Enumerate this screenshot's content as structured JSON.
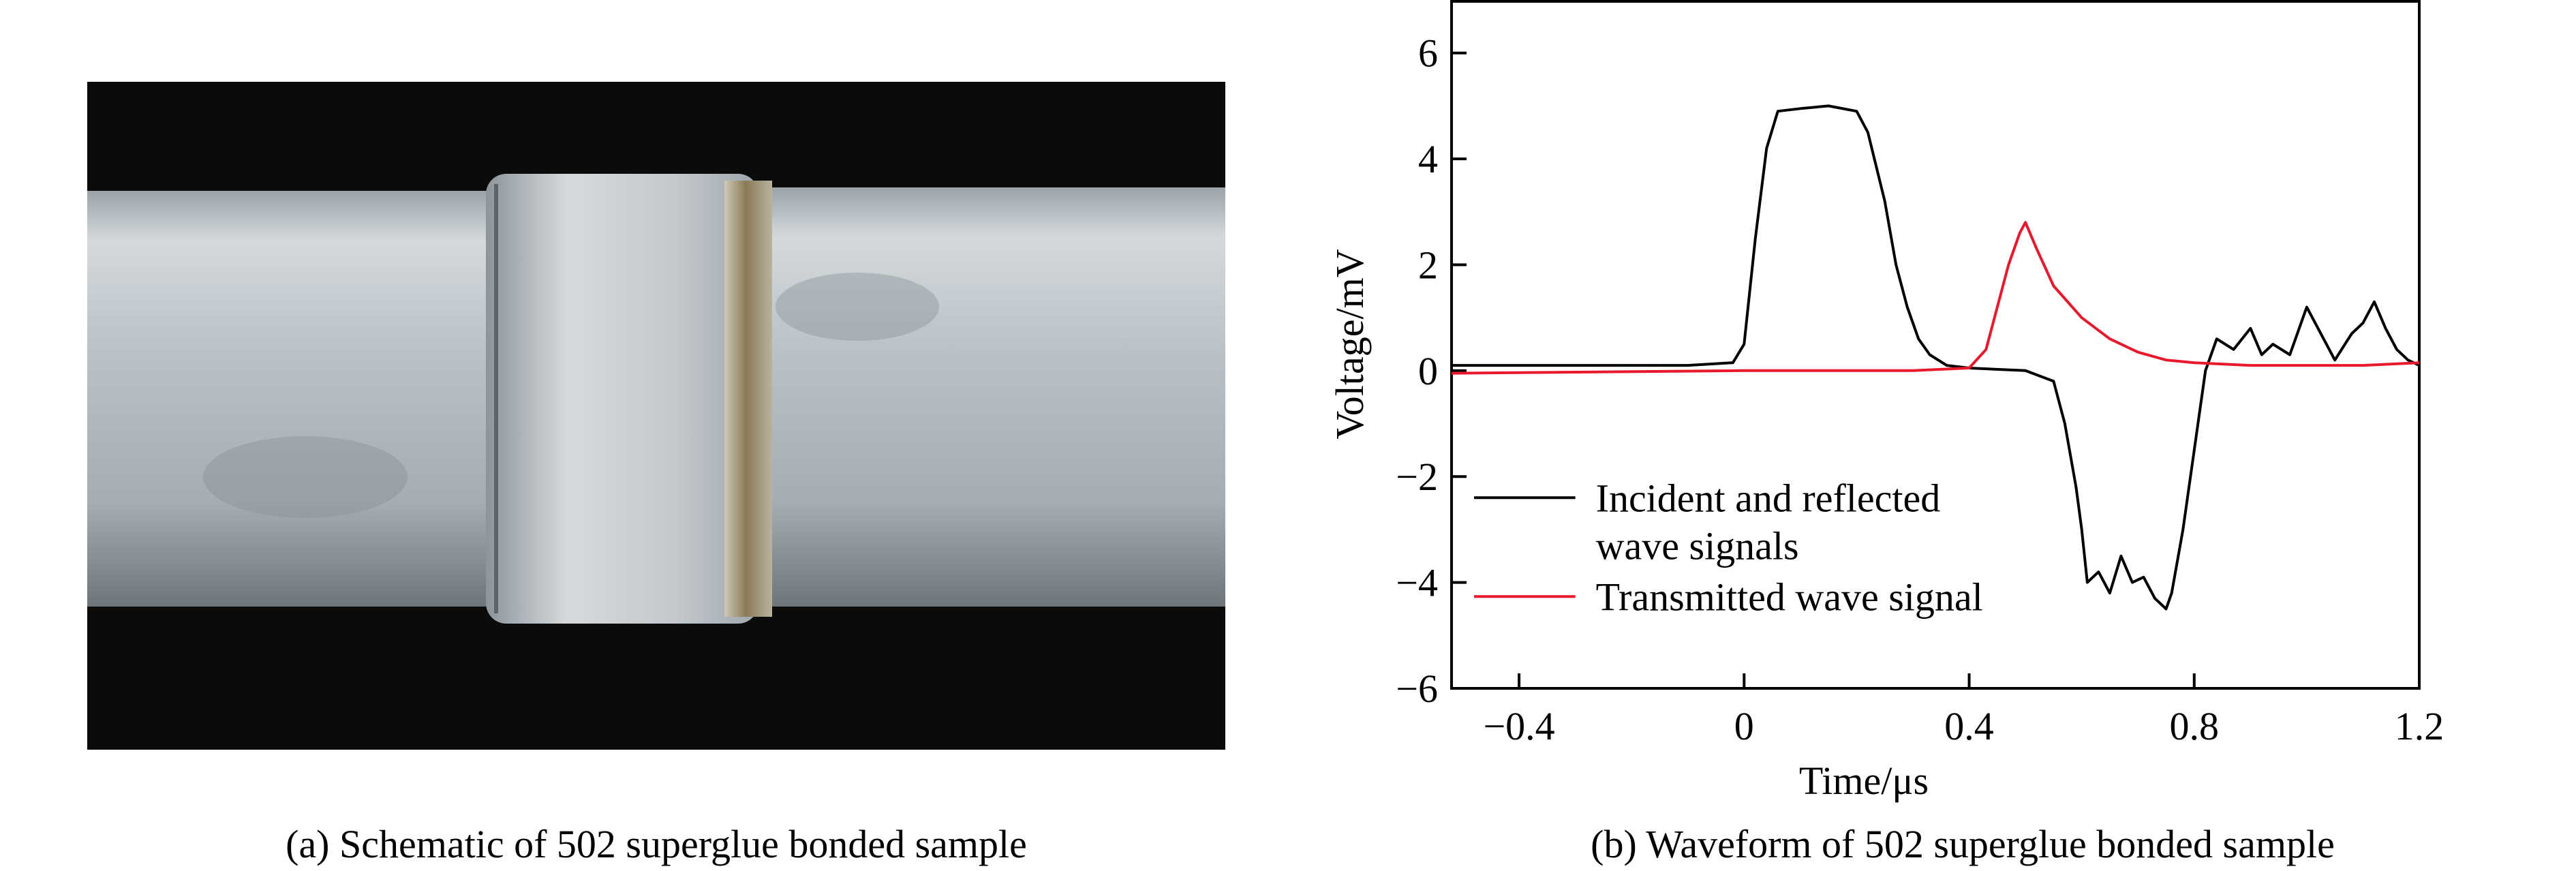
{
  "captions": {
    "a": "(a) Schematic of 502 superglue bonded sample",
    "b": "(b) Waveform of 502 superglue bonded sample"
  },
  "colors": {
    "incident": "#000000",
    "transmitted": "#e8192c",
    "photo_background": "#0b0b0b",
    "pipe": "#b8c0c6",
    "sleeve": "#c9cdd0",
    "glue": "#8f8060"
  },
  "chart_data": {
    "type": "line",
    "title": "",
    "xlabel": "Time/μs",
    "ylabel": "Voltage/mV",
    "xlim": [
      -0.52,
      1.2
    ],
    "ylim": [
      -6,
      7
    ],
    "xticks": [
      -0.4,
      0,
      0.4,
      0.8,
      1.2
    ],
    "xtick_labels": [
      "−0.4",
      "0",
      "0.4",
      "0.8",
      "1.2"
    ],
    "yticks": [
      -6,
      -4,
      -2,
      0,
      2,
      4,
      6
    ],
    "ytick_labels": [
      "−6",
      "−4",
      "−2",
      "0",
      "2",
      "4",
      "6"
    ],
    "grid": false,
    "legend_position": "lower-left",
    "series": [
      {
        "name": "Incident and reflected\nwave signals",
        "legend_lines": [
          "Incident and reflected",
          "wave signals"
        ],
        "color_key": "incident",
        "x": [
          -0.52,
          -0.1,
          -0.02,
          0.0,
          0.02,
          0.04,
          0.06,
          0.1,
          0.15,
          0.2,
          0.22,
          0.25,
          0.27,
          0.29,
          0.31,
          0.33,
          0.36,
          0.4,
          0.5,
          0.55,
          0.57,
          0.59,
          0.6,
          0.61,
          0.63,
          0.65,
          0.67,
          0.69,
          0.71,
          0.73,
          0.75,
          0.76,
          0.78,
          0.8,
          0.82,
          0.84,
          0.87,
          0.9,
          0.92,
          0.94,
          0.97,
          1.0,
          1.02,
          1.05,
          1.08,
          1.1,
          1.12,
          1.14,
          1.16,
          1.18,
          1.2
        ],
        "y": [
          0.1,
          0.1,
          0.15,
          0.5,
          2.5,
          4.2,
          4.9,
          4.95,
          5.0,
          4.9,
          4.5,
          3.2,
          2.0,
          1.2,
          0.6,
          0.3,
          0.1,
          0.05,
          0.0,
          -0.2,
          -1.0,
          -2.2,
          -3.0,
          -4.0,
          -3.8,
          -4.2,
          -3.5,
          -4.0,
          -3.9,
          -4.3,
          -4.5,
          -4.2,
          -3.0,
          -1.5,
          0.0,
          0.6,
          0.4,
          0.8,
          0.3,
          0.5,
          0.3,
          1.2,
          0.8,
          0.2,
          0.7,
          0.9,
          1.3,
          0.8,
          0.4,
          0.2,
          0.1
        ]
      },
      {
        "name": "Transmitted wave signal",
        "legend_lines": [
          "Transmitted wave signal"
        ],
        "color_key": "transmitted",
        "x": [
          -0.52,
          0.0,
          0.3,
          0.4,
          0.43,
          0.45,
          0.47,
          0.49,
          0.5,
          0.52,
          0.55,
          0.6,
          0.65,
          0.7,
          0.75,
          0.8,
          0.9,
          1.0,
          1.1,
          1.2
        ],
        "y": [
          -0.05,
          0.0,
          0.0,
          0.05,
          0.4,
          1.2,
          2.0,
          2.6,
          2.8,
          2.3,
          1.6,
          1.0,
          0.6,
          0.35,
          0.2,
          0.15,
          0.1,
          0.1,
          0.1,
          0.15
        ]
      }
    ]
  }
}
